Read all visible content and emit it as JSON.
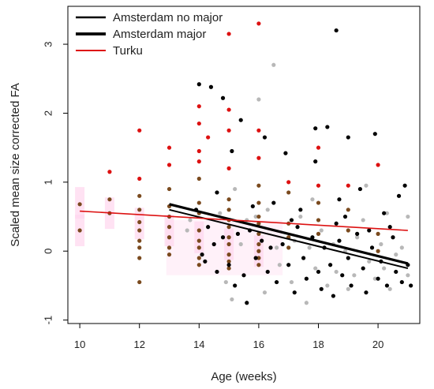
{
  "chart_data": {
    "type": "scatter",
    "xlabel": "Age (weeks)",
    "ylabel": "Scaled mean size corrected FA",
    "xlim": [
      9.6,
      21.4
    ],
    "ylim": [
      -1.05,
      3.55
    ],
    "xticks": [
      10,
      12,
      14,
      16,
      18,
      20
    ],
    "yticks": [
      -1,
      0,
      1,
      2,
      3
    ],
    "grid": false,
    "legend_position": "top-left",
    "colors": {
      "amsterdam_no_major": "#000000",
      "amsterdam_major": "#000000",
      "turku": "#dd1111",
      "turku_dark_points": "#7a4a1e",
      "gray_points": "#b8b8b8",
      "pink_band": "#ffd6ee"
    },
    "series": [
      {
        "name": "Amsterdam no major",
        "style": "thin-line",
        "regression": {
          "x": [
            13,
            21
          ],
          "y": [
            0.6,
            -0.25
          ]
        },
        "points": [
          [
            14.1,
            -0.05
          ],
          [
            14.2,
            -0.15
          ],
          [
            14.3,
            0.35
          ],
          [
            14.5,
            0.1
          ],
          [
            14.6,
            -0.3
          ],
          [
            14.8,
            0.2
          ],
          [
            15.0,
            -0.2
          ],
          [
            15.2,
            -0.5
          ],
          [
            15.3,
            0.25
          ],
          [
            15.5,
            -0.35
          ],
          [
            15.6,
            -0.75
          ],
          [
            15.7,
            0.3
          ],
          [
            15.9,
            -0.1
          ],
          [
            16.1,
            0.15
          ],
          [
            16.3,
            -0.3
          ],
          [
            16.4,
            0.05
          ],
          [
            16.6,
            -0.45
          ],
          [
            16.8,
            0.1
          ],
          [
            17.0,
            -0.2
          ],
          [
            17.2,
            -0.6
          ],
          [
            17.3,
            0.35
          ],
          [
            17.5,
            -0.1
          ],
          [
            17.6,
            -0.4
          ],
          [
            17.8,
            0.2
          ],
          [
            18.0,
            -0.3
          ],
          [
            18.1,
            -0.55
          ],
          [
            18.2,
            0.05
          ],
          [
            18.4,
            -0.2
          ],
          [
            18.5,
            -0.65
          ],
          [
            18.7,
            0.15
          ],
          [
            18.8,
            -0.35
          ],
          [
            19.0,
            -0.1
          ],
          [
            19.1,
            -0.5
          ],
          [
            19.3,
            0.25
          ],
          [
            19.5,
            -0.25
          ],
          [
            19.6,
            -0.6
          ],
          [
            19.8,
            0.05
          ],
          [
            20.0,
            -0.4
          ],
          [
            20.1,
            -0.15
          ],
          [
            20.3,
            -0.5
          ],
          [
            20.5,
            0.2
          ],
          [
            20.6,
            -0.3
          ],
          [
            20.8,
            -0.45
          ],
          [
            21.0,
            -0.2
          ],
          [
            21.1,
            -0.5
          ],
          [
            17.9,
            1.3
          ],
          [
            18.6,
            0.4
          ],
          [
            19.7,
            0.3
          ],
          [
            20.2,
            0.55
          ],
          [
            20.9,
            0.95
          ]
        ]
      },
      {
        "name": "Amsterdam major",
        "style": "thick-line",
        "regression": {
          "x": [
            13,
            21
          ],
          "y": [
            0.68,
            -0.18
          ]
        },
        "points": [
          [
            14.0,
            2.42
          ],
          [
            14.4,
            2.38
          ],
          [
            14.8,
            2.22
          ],
          [
            15.1,
            1.45
          ],
          [
            15.4,
            1.9
          ],
          [
            16.2,
            1.65
          ],
          [
            16.9,
            1.42
          ],
          [
            17.9,
            1.78
          ],
          [
            18.3,
            1.8
          ],
          [
            18.6,
            3.2
          ],
          [
            19.0,
            1.65
          ],
          [
            19.9,
            1.7
          ],
          [
            19.4,
            0.9
          ],
          [
            18.7,
            0.75
          ],
          [
            17.4,
            0.6
          ],
          [
            13.9,
            0.6
          ],
          [
            14.6,
            0.85
          ],
          [
            15.8,
            0.65
          ],
          [
            16.5,
            0.7
          ],
          [
            17.1,
            0.45
          ],
          [
            18.9,
            0.5
          ],
          [
            20.4,
            0.35
          ],
          [
            20.7,
            0.8
          ]
        ]
      },
      {
        "name": "Turku",
        "style": "red-line",
        "regression": {
          "x": [
            10,
            21
          ],
          "y": [
            0.58,
            0.3
          ]
        },
        "points": [
          [
            11.0,
            1.15
          ],
          [
            12.0,
            1.75
          ],
          [
            12.0,
            1.05
          ],
          [
            13.0,
            1.5
          ],
          [
            13.0,
            1.25
          ],
          [
            14.0,
            2.1
          ],
          [
            14.0,
            1.85
          ],
          [
            14.0,
            1.45
          ],
          [
            14.0,
            1.3
          ],
          [
            14.3,
            1.65
          ],
          [
            15.0,
            3.15
          ],
          [
            15.0,
            2.05
          ],
          [
            15.0,
            1.75
          ],
          [
            15.0,
            1.2
          ],
          [
            16.0,
            3.3
          ],
          [
            16.0,
            1.75
          ],
          [
            16.0,
            1.35
          ],
          [
            17.0,
            1.0
          ],
          [
            18.0,
            1.5
          ],
          [
            18.0,
            0.95
          ],
          [
            19.0,
            0.95
          ],
          [
            20.0,
            1.25
          ]
        ]
      }
    ],
    "unlabeled_points": {
      "turku_dark": [
        [
          10.0,
          0.68
        ],
        [
          10.0,
          0.3
        ],
        [
          11.0,
          0.75
        ],
        [
          11.0,
          0.55
        ],
        [
          12.0,
          0.8
        ],
        [
          12.0,
          0.6
        ],
        [
          12.0,
          0.42
        ],
        [
          12.0,
          0.3
        ],
        [
          12.0,
          0.15
        ],
        [
          12.0,
          0.05
        ],
        [
          12.0,
          -0.1
        ],
        [
          12.0,
          -0.45
        ],
        [
          13.0,
          0.9
        ],
        [
          13.0,
          0.65
        ],
        [
          13.0,
          0.5
        ],
        [
          13.0,
          0.35
        ],
        [
          13.0,
          0.2
        ],
        [
          13.0,
          0.05
        ],
        [
          13.0,
          -0.05
        ],
        [
          14.0,
          1.05
        ],
        [
          14.0,
          0.7
        ],
        [
          14.0,
          0.55
        ],
        [
          14.0,
          0.3
        ],
        [
          14.0,
          0.15
        ],
        [
          14.0,
          0.05
        ],
        [
          14.0,
          -0.1
        ],
        [
          14.0,
          -0.2
        ],
        [
          15.0,
          0.75
        ],
        [
          15.0,
          0.6
        ],
        [
          15.0,
          0.45
        ],
        [
          15.0,
          0.35
        ],
        [
          15.0,
          0.2
        ],
        [
          15.0,
          0.1
        ],
        [
          15.0,
          -0.05
        ],
        [
          15.0,
          -0.15
        ],
        [
          15.0,
          -0.25
        ],
        [
          16.0,
          0.95
        ],
        [
          16.0,
          0.7
        ],
        [
          16.0,
          0.5
        ],
        [
          16.0,
          0.4
        ],
        [
          16.0,
          0.25
        ],
        [
          16.0,
          0.1
        ],
        [
          16.0,
          0.0
        ],
        [
          16.0,
          -0.1
        ],
        [
          16.0,
          -0.2
        ],
        [
          17.0,
          0.85
        ],
        [
          17.0,
          0.4
        ],
        [
          17.0,
          0.2
        ],
        [
          17.0,
          0.05
        ],
        [
          18.0,
          0.7
        ],
        [
          18.0,
          0.45
        ],
        [
          18.0,
          0.25
        ],
        [
          19.0,
          0.6
        ],
        [
          19.0,
          0.3
        ],
        [
          20.0,
          0.25
        ],
        [
          20.0,
          0.0
        ]
      ],
      "gray": [
        [
          13.6,
          0.3
        ],
        [
          13.7,
          0.45
        ],
        [
          14.7,
          0.55
        ],
        [
          15.4,
          0.1
        ],
        [
          15.6,
          0.45
        ],
        [
          16.0,
          2.2
        ],
        [
          16.3,
          0.6
        ],
        [
          16.5,
          2.7
        ],
        [
          16.6,
          0.05
        ],
        [
          16.7,
          -0.2
        ],
        [
          17.1,
          -0.45
        ],
        [
          17.2,
          0.15
        ],
        [
          17.4,
          0.5
        ],
        [
          17.6,
          -0.75
        ],
        [
          17.7,
          0.05
        ],
        [
          17.9,
          -0.25
        ],
        [
          18.1,
          0.3
        ],
        [
          18.3,
          -0.5
        ],
        [
          18.5,
          0.1
        ],
        [
          18.6,
          -0.3
        ],
        [
          18.9,
          0.0
        ],
        [
          19.0,
          -0.55
        ],
        [
          19.2,
          -0.35
        ],
        [
          19.3,
          0.2
        ],
        [
          19.5,
          0.45
        ],
        [
          19.7,
          -0.15
        ],
        [
          19.9,
          -0.4
        ],
        [
          20.1,
          0.1
        ],
        [
          20.2,
          -0.25
        ],
        [
          20.4,
          -0.55
        ],
        [
          20.6,
          -0.05
        ],
        [
          20.8,
          0.05
        ],
        [
          21.0,
          0.5
        ],
        [
          21.0,
          -0.35
        ],
        [
          15.2,
          0.9
        ],
        [
          15.9,
          0.5
        ],
        [
          16.2,
          -0.6
        ],
        [
          14.9,
          -0.45
        ],
        [
          15.1,
          -0.7
        ],
        [
          17.8,
          0.75
        ],
        [
          19.6,
          0.95
        ],
        [
          20.3,
          0.55
        ]
      ]
    }
  }
}
